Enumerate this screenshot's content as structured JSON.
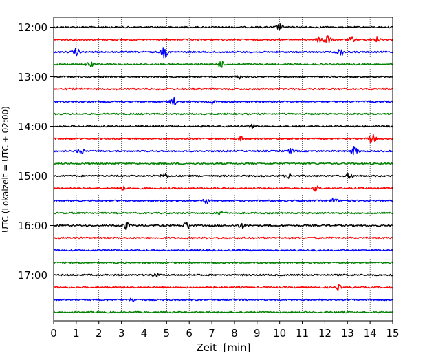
{
  "chart_data": {
    "type": "line",
    "title": "",
    "xlabel": "Zeit  [min]",
    "ylabel": "UTC (Lokalzeit = UTC + 02:00)",
    "x_ticks": [
      "0",
      "1",
      "2",
      "3",
      "4",
      "5",
      "6",
      "7",
      "8",
      "9",
      "10",
      "11",
      "12",
      "13",
      "14",
      "15"
    ],
    "xlim": [
      0,
      15
    ],
    "y_ticks": [
      "12:00",
      "13:00",
      "14:00",
      "15:00",
      "16:00",
      "17:00"
    ],
    "grid": "vertical dotted at each minute",
    "traces_per_hour": 4,
    "trace_minutes": 15,
    "color_cycle": [
      "#000000",
      "#ff0000",
      "#0000ff",
      "#008000"
    ],
    "traces": [
      {
        "start": "12:00",
        "color": "#000000",
        "events": [
          [
            10.0,
            0.35
          ]
        ]
      },
      {
        "start": "12:15",
        "color": "#ff0000",
        "events": [
          [
            11.8,
            0.45
          ],
          [
            12.1,
            0.55
          ],
          [
            13.2,
            0.25
          ],
          [
            14.3,
            0.25
          ]
        ]
      },
      {
        "start": "12:30",
        "color": "#0000ff",
        "events": [
          [
            1.0,
            0.4
          ],
          [
            4.9,
            0.65
          ],
          [
            12.7,
            0.4
          ]
        ]
      },
      {
        "start": "12:45",
        "color": "#008000",
        "events": [
          [
            1.6,
            0.3
          ],
          [
            7.4,
            0.35
          ]
        ]
      },
      {
        "start": "13:00",
        "color": "#000000",
        "events": [
          [
            8.2,
            0.2
          ]
        ]
      },
      {
        "start": "13:15",
        "color": "#ff0000",
        "events": []
      },
      {
        "start": "13:30",
        "color": "#0000ff",
        "events": [
          [
            5.3,
            0.45
          ],
          [
            7.0,
            0.3
          ]
        ]
      },
      {
        "start": "13:45",
        "color": "#008000",
        "events": []
      },
      {
        "start": "14:00",
        "color": "#000000",
        "events": [
          [
            8.8,
            0.25
          ]
        ]
      },
      {
        "start": "14:15",
        "color": "#ff0000",
        "events": [
          [
            8.3,
            0.3
          ],
          [
            14.1,
            0.55
          ]
        ]
      },
      {
        "start": "14:30",
        "color": "#0000ff",
        "events": [
          [
            1.2,
            0.4
          ],
          [
            10.5,
            0.25
          ],
          [
            13.3,
            0.5
          ]
        ]
      },
      {
        "start": "14:45",
        "color": "#008000",
        "events": []
      },
      {
        "start": "15:00",
        "color": "#000000",
        "events": [
          [
            4.9,
            0.3
          ],
          [
            10.4,
            0.25
          ],
          [
            13.1,
            0.25
          ]
        ]
      },
      {
        "start": "15:15",
        "color": "#ff0000",
        "events": [
          [
            3.0,
            0.35
          ],
          [
            11.6,
            0.3
          ]
        ]
      },
      {
        "start": "15:30",
        "color": "#0000ff",
        "events": [
          [
            6.8,
            0.35
          ],
          [
            12.4,
            0.3
          ]
        ]
      },
      {
        "start": "15:45",
        "color": "#008000",
        "events": [
          [
            7.4,
            0.25
          ]
        ]
      },
      {
        "start": "16:00",
        "color": "#000000",
        "events": [
          [
            3.2,
            0.4
          ],
          [
            5.9,
            0.45
          ],
          [
            8.3,
            0.35
          ]
        ]
      },
      {
        "start": "16:15",
        "color": "#ff0000",
        "events": []
      },
      {
        "start": "16:30",
        "color": "#0000ff",
        "events": []
      },
      {
        "start": "16:45",
        "color": "#008000",
        "events": []
      },
      {
        "start": "17:00",
        "color": "#000000",
        "events": [
          [
            4.5,
            0.2
          ]
        ]
      },
      {
        "start": "17:15",
        "color": "#ff0000",
        "events": [
          [
            12.6,
            0.25
          ]
        ]
      },
      {
        "start": "17:30",
        "color": "#0000ff",
        "events": [
          [
            3.5,
            0.2
          ]
        ]
      },
      {
        "start": "17:45",
        "color": "#008000",
        "events": []
      }
    ]
  }
}
